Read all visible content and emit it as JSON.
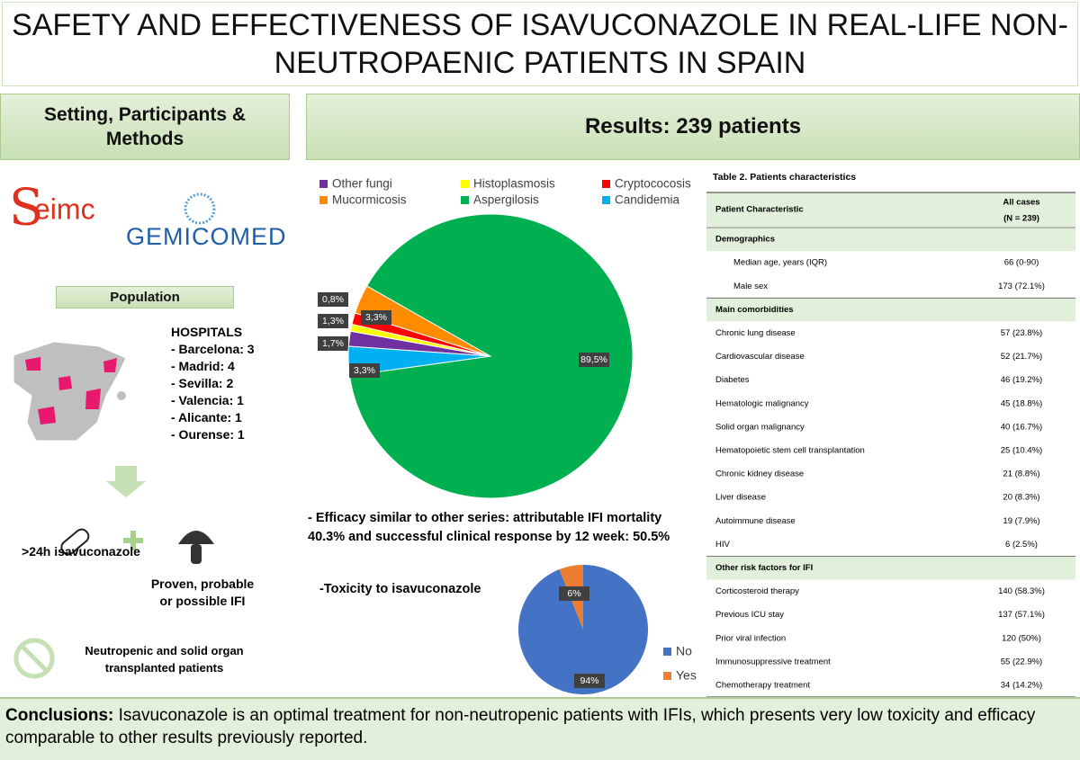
{
  "title": "SAFETY AND EFFECTIVENESS OF ISAVUCONAZOLE IN REAL-LIFE NON-NEUTROPAENIC PATIENTS IN SPAIN",
  "methods": {
    "heading": "Setting, Participants & Methods",
    "logos": [
      "eimc",
      "GEMICOMED"
    ],
    "population": "Population",
    "hospitals_heading": "HOSPITALS",
    "hospitals": [
      "- Barcelona: 3",
      "- Madrid: 4",
      "- Sevilla: 2",
      "- Valencia: 1",
      "- Alicante: 1",
      "- Ourense: 1"
    ],
    "criteria": [
      ">24h isavuconazole",
      "Proven, probable or possible IFI"
    ],
    "exclusion": "Neutropenic and solid organ transplanted patients"
  },
  "results": {
    "heading": "Results: 239 patients",
    "efficacy": "- Efficacy similar to other series: attributable IFI mortality 40.3% and successful clinical response by 12 week: 50.5%",
    "toxicity": "-Toxicity to isavuconazole"
  },
  "chart_data": [
    {
      "type": "pie",
      "categories": [
        "Other fungi",
        "Histoplasmosis",
        "Cryptococosis",
        "Mucormicosis",
        "Aspergilosis",
        "Candidemia"
      ],
      "values": [
        1.7,
        0.8,
        1.3,
        3.3,
        89.5,
        3.3
      ],
      "value_labels": [
        "1,7%",
        "0,8%",
        "1,3%",
        "3,3%",
        "89,5%",
        "3,3%"
      ],
      "colors": [
        "#7030a0",
        "#ffff00",
        "#ff0000",
        "#ff8c00",
        "#00b050",
        "#00b0f0"
      ],
      "legend": "top"
    },
    {
      "type": "pie",
      "categories": [
        "No",
        "Yes"
      ],
      "values": [
        94,
        6
      ],
      "value_labels": [
        "94%",
        "6%"
      ],
      "colors": [
        "#4472c4",
        "#ed7d31"
      ],
      "legend": "right"
    }
  ],
  "table": {
    "title": "Table 2. Patients characteristics",
    "header": [
      "Patient Characteristic",
      "All cases",
      "(N = 239)"
    ],
    "rows": [
      [
        "Demographics"
      ],
      [
        "Median age, years (IQR)",
        "66 (0-90)"
      ],
      [
        "Male sex",
        "173 (72.1%)"
      ],
      [
        "Main comorbidities"
      ],
      [
        "Chronic lung disease",
        "57 (23.8%)"
      ],
      [
        "Cardiovascular disease",
        "52 (21.7%)"
      ],
      [
        "Diabetes",
        "46 (19.2%)"
      ],
      [
        "Hematologic malignancy",
        "45 (18.8%)"
      ],
      [
        "Solid organ malignancy",
        "40 (16.7%)"
      ],
      [
        "Hematopoietic stem cell transplantation",
        "25 (10.4%)"
      ],
      [
        "Chronic kidney disease",
        "21 (8.8%)"
      ],
      [
        "Liver disease",
        "20 (8.3%)"
      ],
      [
        "Autoimmune disease",
        "19 (7.9%)"
      ],
      [
        "HIV",
        "6 (2.5%)"
      ],
      [
        "Other risk factors for IFI"
      ],
      [
        "Corticosteroid therapy",
        "140 (58.3%)"
      ],
      [
        "Previous ICU stay",
        "137 (57.1%)"
      ],
      [
        "Prior viral infection",
        "120 (50%)"
      ],
      [
        "Immunosuppressive treatment",
        "55 (22.9%)"
      ],
      [
        "Chemotherapy treatment",
        "34 (14.2%)"
      ]
    ]
  },
  "conclusions": {
    "label": "Conclusions:",
    "text": "Isavuconazole is an optimal treatment for non-neutropenic patients with IFIs, which presents very low toxicity and efficacy comparable to other results previously reported."
  }
}
